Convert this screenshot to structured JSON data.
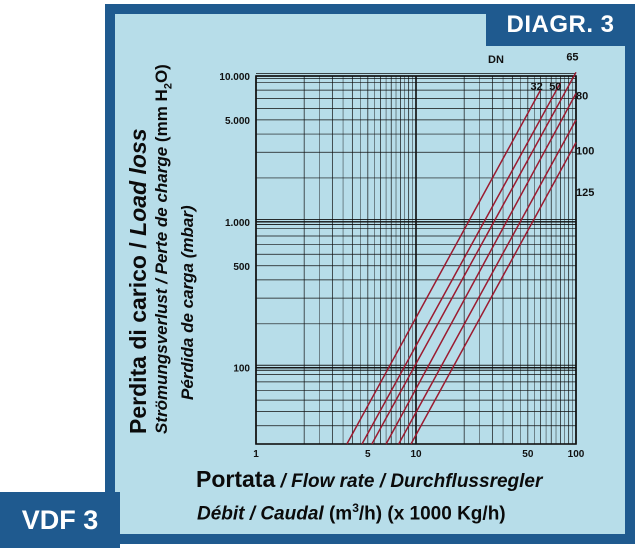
{
  "diagram_tag": "DIAGR. 3",
  "model_tag": "VDF 3",
  "ylabel": {
    "line1_main": "Perdita di carico",
    "line1_sep": " / ",
    "line1_it": "Load loss",
    "line2_it": "Strömungsverlust / Perte de charge",
    "line2_unit": " (mm H",
    "line2_sub": "2",
    "line2_end": "O)",
    "line3_it": "Pérdida de carga",
    "line3_unit": " (mbar)"
  },
  "xlabel": {
    "line1_main": "Portata",
    "line1_rest": " / Flow rate / Durchflussregler",
    "line2_it": "Débit / Caudal",
    "line2_unit_a": "  (m",
    "line2_sup": "3",
    "line2_unit_b": "/h) (x 1000 Kg/h)"
  },
  "colors": {
    "frame": "#1f5a8f",
    "plot_bg": "#b7dde9",
    "grid": "#111111",
    "curve": "#9b1b30"
  },
  "chart_data": {
    "type": "line",
    "x_scale": "log",
    "y_scale": "log",
    "xlim": [
      1,
      100
    ],
    "ylim": [
      30,
      10000
    ],
    "grid": true,
    "x_tick_labels": [
      {
        "value": 1,
        "label": "1"
      },
      {
        "value": 5,
        "label": "5"
      },
      {
        "value": 10,
        "label": "10"
      },
      {
        "value": 50,
        "label": "50"
      },
      {
        "value": 100,
        "label": "100"
      }
    ],
    "y_tick_labels": [
      {
        "value": 100,
        "label": "100"
      },
      {
        "value": 500,
        "label": "500"
      },
      {
        "value": 1000,
        "label": "1.000"
      },
      {
        "value": 5000,
        "label": "5.000"
      },
      {
        "value": 10000,
        "label": "10.000"
      }
    ],
    "legend_title": "DN",
    "series": [
      {
        "name": "32",
        "points": [
          [
            3.7,
            30
          ],
          [
            60,
            8000
          ]
        ],
        "label_at": [
          52,
          8000
        ]
      },
      {
        "name": "50",
        "points": [
          [
            4.6,
            30
          ],
          [
            80,
            9000
          ]
        ],
        "label_at": [
          68,
          8000
        ]
      },
      {
        "name": "65",
        "points": [
          [
            5.3,
            30
          ],
          [
            100,
            10600
          ]
        ],
        "label_at": [
          87,
          12800
        ]
      },
      {
        "name": "80",
        "points": [
          [
            6.5,
            30
          ],
          [
            100,
            7600
          ]
        ],
        "label_at": [
          100,
          6900
        ]
      },
      {
        "name": "100",
        "points": [
          [
            7.8,
            30
          ],
          [
            100,
            5000
          ]
        ],
        "label_at": [
          100,
          2900
        ]
      },
      {
        "name": "125",
        "points": [
          [
            9.3,
            30
          ],
          [
            100,
            3500
          ]
        ],
        "label_at": [
          100,
          1500
        ]
      }
    ]
  }
}
